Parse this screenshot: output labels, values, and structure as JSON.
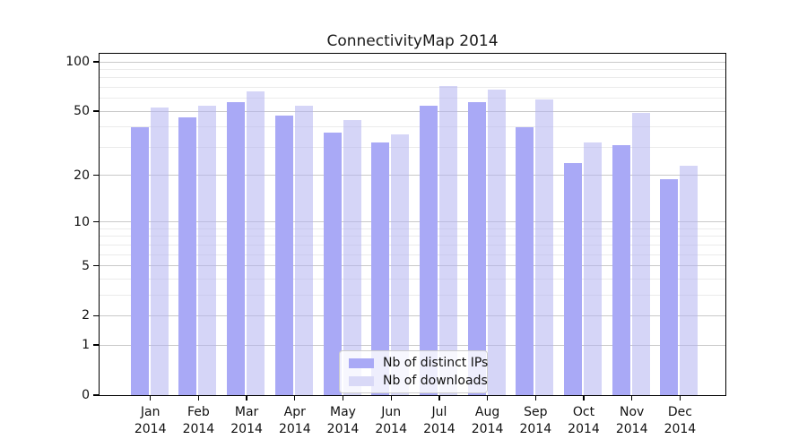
{
  "chart_data": {
    "type": "bar",
    "title": "ConnectivityMap 2014",
    "xlabel": "",
    "ylabel": "",
    "yscale": "log1p (symlog-like: position proportional to log10(1+value))",
    "ylim": [
      0,
      112
    ],
    "yticks": [
      100,
      50,
      20,
      10,
      5,
      2,
      1,
      0
    ],
    "grid_major_values": [
      100,
      50,
      20,
      10,
      5,
      2,
      1
    ],
    "grid_minor_values": [
      3,
      4,
      6,
      7,
      8,
      9,
      30,
      40,
      60,
      70,
      80,
      90
    ],
    "grid": "horizontal only",
    "legend_position": "lower center",
    "categories": [
      "Jan\n2014",
      "Feb\n2014",
      "Mar\n2014",
      "Apr\n2014",
      "May\n2014",
      "Jun\n2014",
      "Jul\n2014",
      "Aug\n2014",
      "Sep\n2014",
      "Oct\n2014",
      "Nov\n2014",
      "Dec\n2014"
    ],
    "series": [
      {
        "name": "Nb of distinct IPs",
        "key": "distinct-ips",
        "color": "#a9a9f6",
        "values": [
          40,
          46,
          57,
          47,
          37,
          32,
          54,
          57,
          40,
          24,
          31,
          19
        ]
      },
      {
        "name": "Nb of downloads",
        "key": "downloads",
        "color": "rgba(178,178,241,0.55)",
        "color_flat": "#d9d9f7",
        "values": [
          53,
          54,
          66,
          54,
          44,
          36,
          71,
          68,
          59,
          32,
          49,
          23
        ]
      }
    ]
  },
  "colors": {
    "background": "#ffffff",
    "spine": "#000000",
    "grid_major": "#c9c9c9",
    "grid_minor": "#ebebeb",
    "text": "#1a1a1a",
    "legend_border": "#cccccc",
    "legend_background": "rgba(255,255,255,0.8)"
  }
}
